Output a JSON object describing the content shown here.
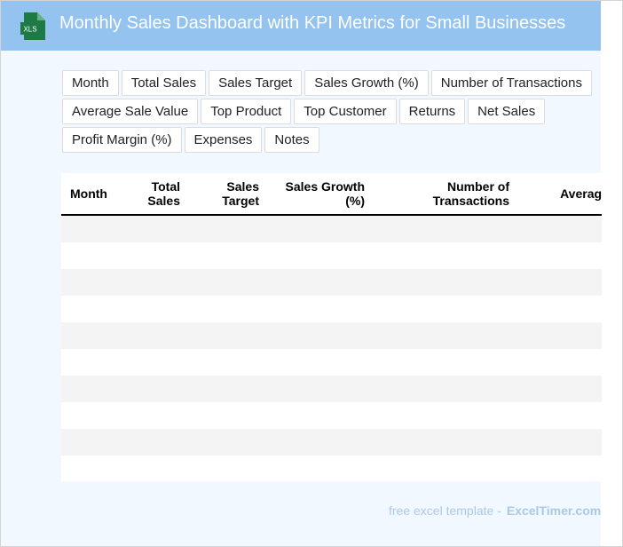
{
  "header": {
    "title": "Monthly Sales Dashboard with KPI Metrics for Small Businesses",
    "icon": "xls-file-icon",
    "icon_label": "XLS",
    "background_color": "#93c3ee"
  },
  "chips": [
    [
      "Month",
      "Total Sales",
      "Sales Target",
      "Sales Growth (%)",
      "Number of Transactions"
    ],
    [
      "Average Sale Value",
      "Top Product",
      "Top Customer",
      "Returns",
      "Net Sales"
    ],
    [
      "Profit Margin (%)",
      "Expenses",
      "Notes"
    ]
  ],
  "table": {
    "columns": [
      {
        "label": "Month",
        "align": "left"
      },
      {
        "label": "Total Sales",
        "align": "right"
      },
      {
        "label": "Sales Target",
        "align": "right"
      },
      {
        "label": "Sales Growth (%)",
        "align": "right"
      },
      {
        "label": "Number of Transactions",
        "align": "right"
      },
      {
        "label": "Average Sale Value",
        "align": "right"
      }
    ],
    "row_count": 10,
    "stripe_color": "#f4f4f4"
  },
  "footer": {
    "prefix": "free excel template -",
    "brand": "ExcelTimer.com"
  }
}
